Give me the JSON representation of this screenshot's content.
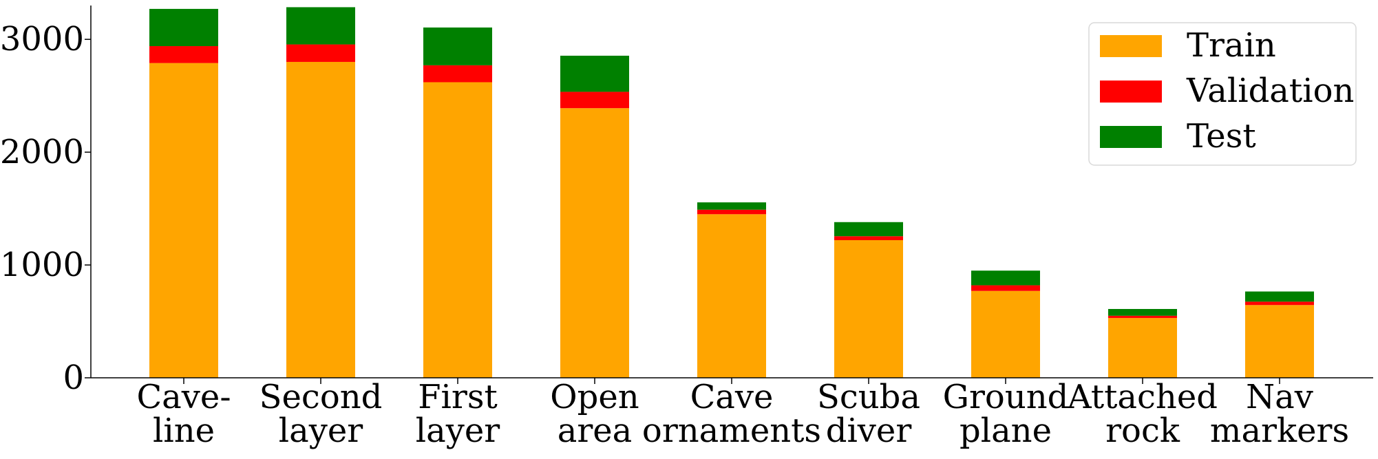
{
  "chart_data": {
    "type": "bar",
    "stacked": true,
    "categories": [
      [
        "Cave-",
        "line"
      ],
      [
        "Second",
        "layer"
      ],
      [
        "First",
        "layer"
      ],
      [
        "Open",
        "area"
      ],
      [
        "Cave",
        "ornaments"
      ],
      [
        "Scuba",
        "diver"
      ],
      [
        "Ground",
        "plane"
      ],
      [
        "Attached",
        "rock"
      ],
      [
        "Nav",
        "markers"
      ]
    ],
    "series": [
      {
        "name": "Train",
        "color": "#FFA500",
        "values": [
          2790,
          2800,
          2620,
          2390,
          1450,
          1220,
          770,
          530,
          645
        ]
      },
      {
        "name": "Validation",
        "color": "#FF0000",
        "values": [
          150,
          155,
          150,
          145,
          40,
          35,
          50,
          20,
          30
        ]
      },
      {
        "name": "Test",
        "color": "#008000",
        "values": [
          330,
          330,
          335,
          320,
          65,
          125,
          130,
          60,
          90
        ]
      }
    ],
    "title": "",
    "xlabel": "",
    "ylabel": "",
    "ylim": [
      0,
      3300
    ],
    "yticks": [
      0,
      1000,
      2000,
      3000
    ],
    "grid": false,
    "legend": "top-right"
  }
}
